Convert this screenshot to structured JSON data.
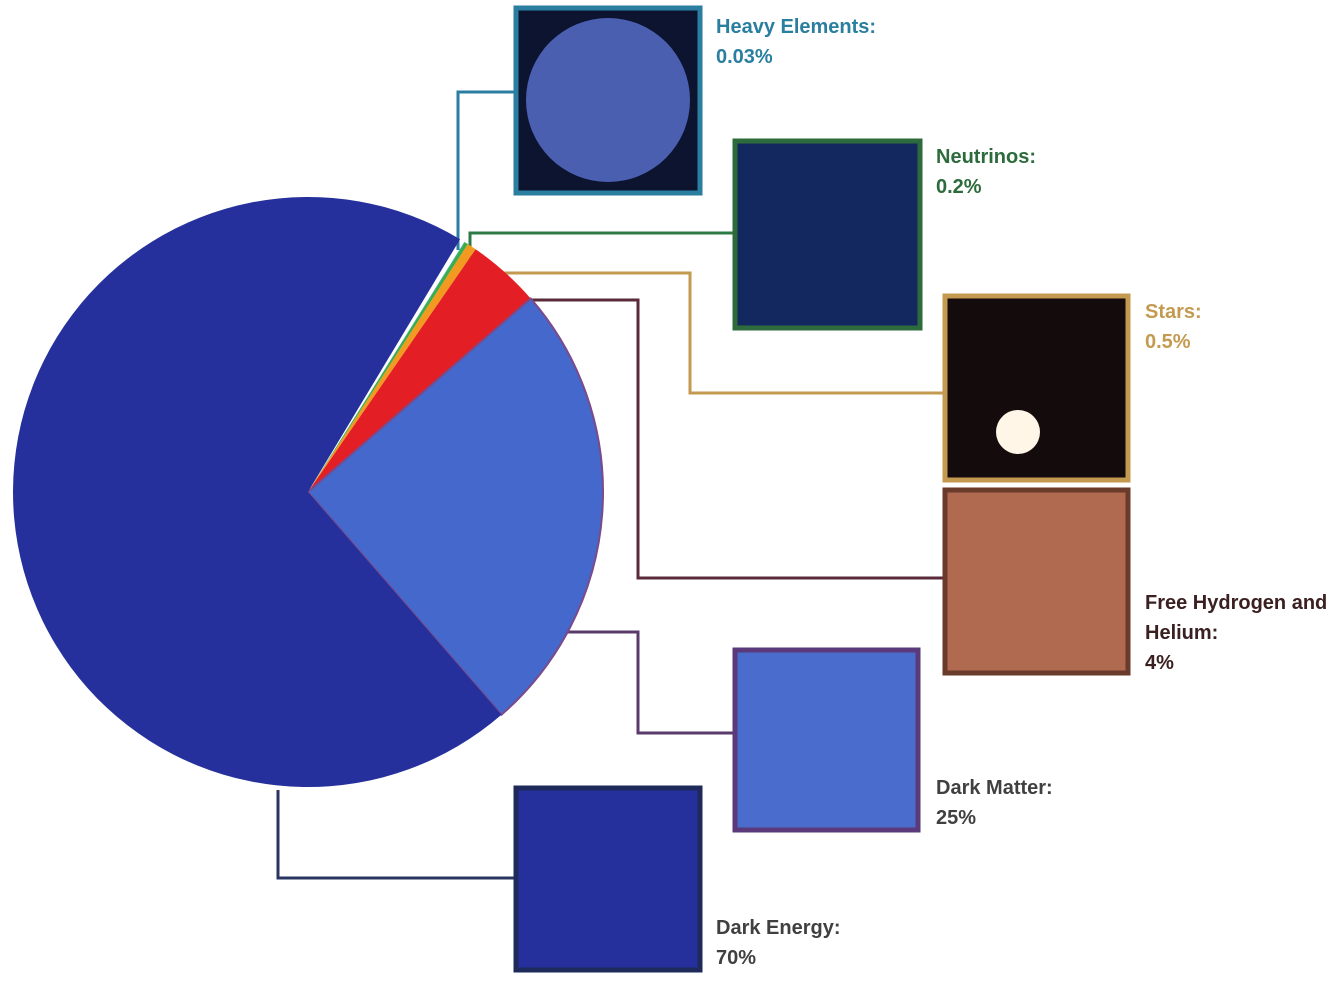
{
  "chart_data": {
    "type": "pie",
    "categories": [
      "Heavy Elements:",
      "Neutrinos:",
      "Stars:",
      "Free Hydrogen and Helium:",
      "Dark Matter:",
      "Dark Energy:"
    ],
    "values": [
      0.03,
      0.2,
      0.5,
      4,
      25,
      70
    ],
    "value_labels": [
      "0.03%",
      "0.2%",
      "0.5%",
      "4%",
      "25%",
      "70%"
    ],
    "colors": [
      "#47a6cf",
      "#3aae4a",
      "#f29a1f",
      "#e31e25",
      "#4468cc",
      "#25309c"
    ]
  }
}
